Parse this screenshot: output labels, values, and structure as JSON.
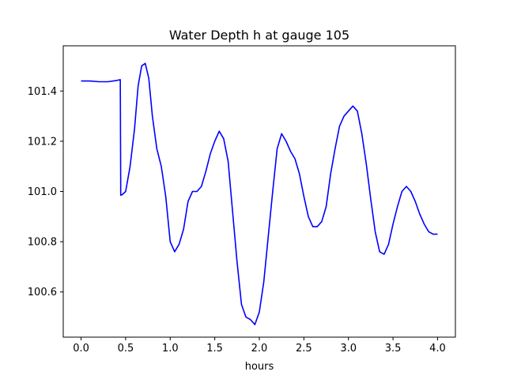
{
  "chart_data": {
    "type": "line",
    "title": "Water Depth h at gauge 105",
    "xlabel": "hours",
    "ylabel": "",
    "xlim": [
      -0.2,
      4.2
    ],
    "ylim": [
      100.42,
      101.58
    ],
    "xticks": [
      0.0,
      0.5,
      1.0,
      1.5,
      2.0,
      2.5,
      3.0,
      3.5,
      4.0
    ],
    "xtick_labels": [
      "0.0",
      "0.5",
      "1.0",
      "1.5",
      "2.0",
      "2.5",
      "3.0",
      "3.5",
      "4.0"
    ],
    "yticks": [
      100.6,
      100.8,
      101.0,
      101.2,
      101.4
    ],
    "ytick_labels": [
      "100.6",
      "100.8",
      "101.0",
      "101.2",
      "101.4"
    ],
    "grid": false,
    "series": [
      {
        "color": "#0000ff",
        "x": [
          0.0,
          0.1,
          0.2,
          0.3,
          0.4,
          0.44,
          0.445,
          0.46,
          0.5,
          0.55,
          0.6,
          0.64,
          0.68,
          0.72,
          0.76,
          0.8,
          0.85,
          0.9,
          0.95,
          1.0,
          1.05,
          1.1,
          1.15,
          1.2,
          1.25,
          1.3,
          1.35,
          1.4,
          1.45,
          1.5,
          1.55,
          1.6,
          1.65,
          1.7,
          1.75,
          1.8,
          1.85,
          1.9,
          1.95,
          2.0,
          2.05,
          2.1,
          2.15,
          2.2,
          2.25,
          2.3,
          2.35,
          2.4,
          2.45,
          2.5,
          2.55,
          2.6,
          2.65,
          2.7,
          2.75,
          2.8,
          2.85,
          2.9,
          2.95,
          3.0,
          3.05,
          3.1,
          3.15,
          3.2,
          3.25,
          3.3,
          3.35,
          3.4,
          3.45,
          3.5,
          3.55,
          3.6,
          3.65,
          3.7,
          3.75,
          3.8,
          3.85,
          3.9,
          3.95,
          4.0
        ],
        "y": [
          101.44,
          101.44,
          101.437,
          101.437,
          101.442,
          101.445,
          100.985,
          100.987,
          101.0,
          101.1,
          101.25,
          101.42,
          101.5,
          101.51,
          101.45,
          101.3,
          101.17,
          101.1,
          100.98,
          100.8,
          100.76,
          100.79,
          100.85,
          100.96,
          101.0,
          101.0,
          101.02,
          101.08,
          101.15,
          101.2,
          101.24,
          101.21,
          101.12,
          100.92,
          100.72,
          100.55,
          100.5,
          100.49,
          100.47,
          100.52,
          100.64,
          100.82,
          101.0,
          101.17,
          101.23,
          101.2,
          101.16,
          101.13,
          101.07,
          100.98,
          100.9,
          100.86,
          100.86,
          100.88,
          100.94,
          101.07,
          101.17,
          101.26,
          101.3,
          101.32,
          101.34,
          101.32,
          101.23,
          101.11,
          100.97,
          100.84,
          100.76,
          100.75,
          100.79,
          100.87,
          100.94,
          101.0,
          101.02,
          101.0,
          100.96,
          100.91,
          100.87,
          100.84,
          100.83,
          100.83
        ]
      }
    ]
  }
}
